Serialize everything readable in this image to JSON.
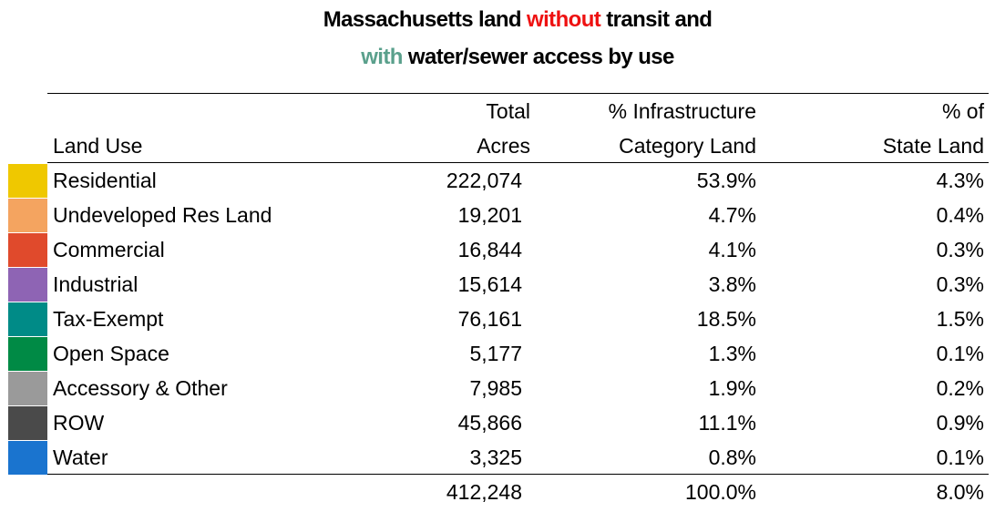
{
  "title": {
    "line1_a": "Massachusetts land ",
    "line1_b": "without",
    "line1_c": " transit and",
    "line2_a": "with",
    "line2_b": " water/sewer access by use",
    "red": "#ee1111",
    "teal": "#5aa08c"
  },
  "headers": {
    "land_use": "Land Use",
    "total_1": "Total",
    "total_2": "Acres",
    "infra_1": "% Infrastructure",
    "infra_2": "Category Land",
    "state_1": "% of",
    "state_2": "State Land"
  },
  "rows": [
    {
      "land_use": "Residential",
      "acres": "222,074",
      "pct_infra": "53.9%",
      "pct_state": "4.3%",
      "color": "#efc800"
    },
    {
      "land_use": "Undeveloped Res Land",
      "acres": "19,201",
      "pct_infra": "4.7%",
      "pct_state": "0.4%",
      "color": "#f4a460"
    },
    {
      "land_use": "Commercial",
      "acres": "16,844",
      "pct_infra": "4.1%",
      "pct_state": "0.3%",
      "color": "#e04a2c"
    },
    {
      "land_use": "Industrial",
      "acres": "15,614",
      "pct_infra": "3.8%",
      "pct_state": "0.3%",
      "color": "#8e64b4"
    },
    {
      "land_use": "Tax-Exempt",
      "acres": "76,161",
      "pct_infra": "18.5%",
      "pct_state": "1.5%",
      "color": "#008b87"
    },
    {
      "land_use": "Open Space",
      "acres": "5,177",
      "pct_infra": "1.3%",
      "pct_state": "0.1%",
      "color": "#008a45"
    },
    {
      "land_use": "Accessory & Other",
      "acres": "7,985",
      "pct_infra": "1.9%",
      "pct_state": "0.2%",
      "color": "#9a9a9a"
    },
    {
      "land_use": "ROW",
      "acres": "45,866",
      "pct_infra": "11.1%",
      "pct_state": "0.9%",
      "color": "#4a4a4a"
    },
    {
      "land_use": "Water",
      "acres": "3,325",
      "pct_infra": "0.8%",
      "pct_state": "0.1%",
      "color": "#1a74cf"
    }
  ],
  "totals": {
    "acres": "412,248",
    "pct_infra": "100.0%",
    "pct_state": "8.0%"
  }
}
